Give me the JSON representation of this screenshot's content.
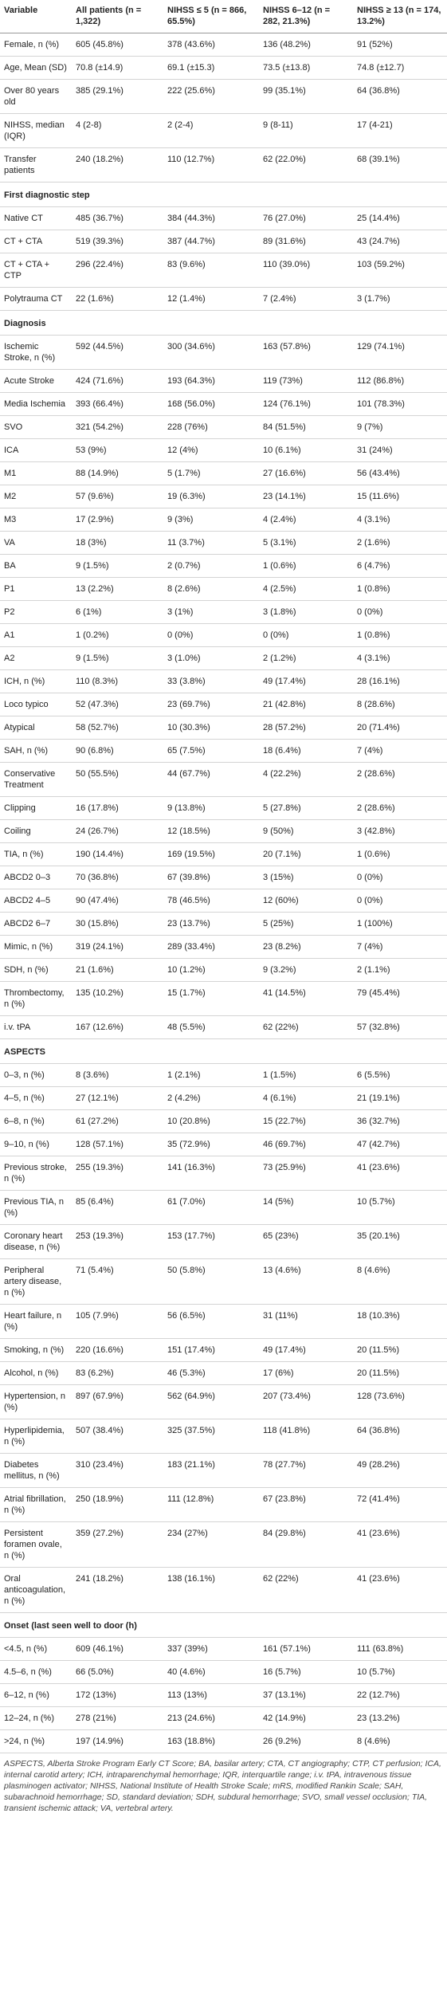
{
  "table": {
    "header": [
      "Variable",
      "All patients (n = 1,322)",
      "NIHSS ≤ 5 (n = 866, 65.5%)",
      "NIHSS 6–12 (n = 282, 21.3%)",
      "NIHSS ≥ 13 (n = 174, 13.2%)"
    ],
    "rows": [
      [
        "Female, n (%)",
        "605 (45.8%)",
        "378 (43.6%)",
        "136 (48.2%)",
        "91 (52%)"
      ],
      [
        "Age, Mean (SD)",
        "70.8 (±14.9)",
        "69.1 (±15.3)",
        "73.5 (±13.8)",
        "74.8 (±12.7)"
      ],
      [
        "Over 80 years old",
        "385 (29.1%)",
        "222 (25.6%)",
        "99 (35.1%)",
        "64 (36.8%)"
      ],
      [
        "NIHSS, median (IQR)",
        "4 (2-8)",
        "2 (2-4)",
        "9 (8-11)",
        "17 (4-21)"
      ],
      [
        "Transfer patients",
        "240 (18.2%)",
        "110 (12.7%)",
        "62 (22.0%)",
        "68 (39.1%)"
      ],
      [
        "First diagnostic step"
      ],
      [
        "Native CT",
        "485 (36.7%)",
        "384 (44.3%)",
        "76 (27.0%)",
        "25 (14.4%)"
      ],
      [
        "CT + CTA",
        "519 (39.3%)",
        "387 (44.7%)",
        "89 (31.6%)",
        "43 (24.7%)"
      ],
      [
        "CT + CTA + CTP",
        "296 (22.4%)",
        "83 (9.6%)",
        "110 (39.0%)",
        "103 (59.2%)"
      ],
      [
        "Polytrauma CT",
        "22 (1.6%)",
        "12 (1.4%)",
        "7 (2.4%)",
        "3 (1.7%)"
      ],
      [
        "Diagnosis"
      ],
      [
        "Ischemic Stroke, n (%)",
        "592 (44.5%)",
        "300 (34.6%)",
        "163 (57.8%)",
        "129 (74.1%)"
      ],
      [
        "Acute Stroke",
        "424 (71.6%)",
        "193 (64.3%)",
        "119 (73%)",
        "112 (86.8%)"
      ],
      [
        "Media Ischemia",
        "393 (66.4%)",
        "168 (56.0%)",
        "124 (76.1%)",
        "101 (78.3%)"
      ],
      [
        "SVO",
        "321 (54.2%)",
        "228 (76%)",
        "84 (51.5%)",
        "9 (7%)"
      ],
      [
        "ICA",
        "53 (9%)",
        "12 (4%)",
        "10 (6.1%)",
        "31 (24%)"
      ],
      [
        "M1",
        "88 (14.9%)",
        "5 (1.7%)",
        "27 (16.6%)",
        "56 (43.4%)"
      ],
      [
        "M2",
        "57 (9.6%)",
        "19 (6.3%)",
        "23 (14.1%)",
        "15 (11.6%)"
      ],
      [
        "M3",
        "17 (2.9%)",
        "9 (3%)",
        "4 (2.4%)",
        "4 (3.1%)"
      ],
      [
        "VA",
        "18 (3%)",
        "11 (3.7%)",
        "5 (3.1%)",
        "2 (1.6%)"
      ],
      [
        "BA",
        "9 (1.5%)",
        "2 (0.7%)",
        "1 (0.6%)",
        "6 (4.7%)"
      ],
      [
        "P1",
        "13 (2.2%)",
        "8 (2.6%)",
        "4 (2.5%)",
        "1 (0.8%)"
      ],
      [
        "P2",
        "6 (1%)",
        "3 (1%)",
        "3 (1.8%)",
        "0 (0%)"
      ],
      [
        "A1",
        "1 (0.2%)",
        "0 (0%)",
        "0 (0%)",
        "1 (0.8%)"
      ],
      [
        "A2",
        "9 (1.5%)",
        "3 (1.0%)",
        "2 (1.2%)",
        "4 (3.1%)"
      ],
      [
        "ICH, n (%)",
        "110 (8.3%)",
        "33 (3.8%)",
        "49 (17.4%)",
        "28 (16.1%)"
      ],
      [
        "Loco typico",
        "52 (47.3%)",
        "23 (69.7%)",
        "21 (42.8%)",
        "8 (28.6%)"
      ],
      [
        "Atypical",
        "58 (52.7%)",
        "10 (30.3%)",
        "28 (57.2%)",
        "20 (71.4%)"
      ],
      [
        "SAH, n (%)",
        "90 (6.8%)",
        "65 (7.5%)",
        "18 (6.4%)",
        "7 (4%)"
      ],
      [
        "Conservative Treatment",
        "50 (55.5%)",
        "44 (67.7%)",
        "4 (22.2%)",
        "2 (28.6%)"
      ],
      [
        "Clipping",
        "16 (17.8%)",
        "9 (13.8%)",
        "5 (27.8%)",
        "2 (28.6%)"
      ],
      [
        "Coiling",
        "24 (26.7%)",
        "12 (18.5%)",
        "9 (50%)",
        "3 (42.8%)"
      ],
      [
        "TIA, n (%)",
        "190 (14.4%)",
        "169 (19.5%)",
        "20 (7.1%)",
        "1 (0.6%)"
      ],
      [
        "ABCD2 0–3",
        "70 (36.8%)",
        "67 (39.8%)",
        "3 (15%)",
        "0 (0%)"
      ],
      [
        "ABCD2 4–5",
        "90 (47.4%)",
        "78 (46.5%)",
        "12 (60%)",
        "0 (0%)"
      ],
      [
        "ABCD2 6–7",
        "30 (15.8%)",
        "23 (13.7%)",
        "5 (25%)",
        "1 (100%)"
      ],
      [
        "Mimic, n (%)",
        "319 (24.1%)",
        "289 (33.4%)",
        "23 (8.2%)",
        "7 (4%)"
      ],
      [
        "SDH, n (%)",
        "21 (1.6%)",
        "10 (1.2%)",
        "9 (3.2%)",
        "2 (1.1%)"
      ],
      [
        "Thrombectomy, n (%)",
        "135 (10.2%)",
        "15 (1.7%)",
        "41 (14.5%)",
        "79 (45.4%)"
      ],
      [
        "i.v. tPA",
        "167 (12.6%)",
        "48 (5.5%)",
        "62 (22%)",
        "57 (32.8%)"
      ],
      [
        "ASPECTS"
      ],
      [
        "0–3, n (%)",
        "8 (3.6%)",
        "1 (2.1%)",
        "1 (1.5%)",
        "6 (5.5%)"
      ],
      [
        "4–5, n (%)",
        "27 (12.1%)",
        "2 (4.2%)",
        "4 (6.1%)",
        "21 (19.1%)"
      ],
      [
        "6–8, n (%)",
        "61 (27.2%)",
        "10 (20.8%)",
        "15 (22.7%)",
        "36 (32.7%)"
      ],
      [
        "9–10, n (%)",
        "128 (57.1%)",
        "35 (72.9%)",
        "46 (69.7%)",
        "47 (42.7%)"
      ],
      [
        "Previous stroke, n (%)",
        "255 (19.3%)",
        "141 (16.3%)",
        "73 (25.9%)",
        "41 (23.6%)"
      ],
      [
        "Previous TIA, n (%)",
        "85 (6.4%)",
        "61 (7.0%)",
        "14 (5%)",
        "10 (5.7%)"
      ],
      [
        "Coronary heart disease, n (%)",
        "253 (19.3%)",
        "153 (17.7%)",
        "65 (23%)",
        "35 (20.1%)"
      ],
      [
        "Peripheral artery disease, n (%)",
        "71 (5.4%)",
        "50 (5.8%)",
        "13 (4.6%)",
        "8 (4.6%)"
      ],
      [
        "Heart failure, n (%)",
        "105 (7.9%)",
        "56 (6.5%)",
        "31 (11%)",
        "18 (10.3%)"
      ],
      [
        "Smoking, n (%)",
        "220 (16.6%)",
        "151 (17.4%)",
        "49 (17.4%)",
        "20 (11.5%)"
      ],
      [
        "Alcohol, n (%)",
        "83 (6.2%)",
        "46 (5.3%)",
        "17 (6%)",
        "20 (11.5%)"
      ],
      [
        "Hypertension, n (%)",
        "897 (67.9%)",
        "562 (64.9%)",
        "207 (73.4%)",
        "128 (73.6%)"
      ],
      [
        "Hyperlipidemia, n (%)",
        "507 (38.4%)",
        "325 (37.5%)",
        "118 (41.8%)",
        "64 (36.8%)"
      ],
      [
        "Diabetes mellitus, n (%)",
        "310 (23.4%)",
        "183 (21.1%)",
        "78 (27.7%)",
        "49 (28.2%)"
      ],
      [
        "Atrial fibrillation, n (%)",
        "250 (18.9%)",
        "111 (12.8%)",
        "67 (23.8%)",
        "72 (41.4%)"
      ],
      [
        "Persistent foramen ovale, n (%)",
        "359 (27.2%)",
        "234 (27%)",
        "84 (29.8%)",
        "41 (23.6%)"
      ],
      [
        "Oral anticoagulation, n (%)",
        "241 (18.2%)",
        "138 (16.1%)",
        "62 (22%)",
        "41 (23.6%)"
      ],
      [
        "Onset (last seen well to door (h)"
      ],
      [
        "<4.5, n (%)",
        "609 (46.1%)",
        "337 (39%)",
        "161 (57.1%)",
        "111 (63.8%)"
      ],
      [
        "4.5–6, n (%)",
        "66 (5.0%)",
        "40 (4.6%)",
        "16 (5.7%)",
        "10 (5.7%)"
      ],
      [
        "6–12, n (%)",
        "172 (13%)",
        "113 (13%)",
        "37 (13.1%)",
        "22 (12.7%)"
      ],
      [
        "12–24, n (%)",
        "278 (21%)",
        "213 (24.6%)",
        "42 (14.9%)",
        "23 (13.2%)"
      ],
      [
        ">24, n (%)",
        "197 (14.9%)",
        "163 (18.8%)",
        "26 (9.2%)",
        "8 (4.6%)"
      ]
    ]
  },
  "footnote": "ASPECTS, Alberta Stroke Program Early CT Score; BA, basilar artery; CTA, CT angiography; CTP, CT perfusion; ICA, internal carotid artery; ICH, intraparenchymal hemorrhage; IQR, interquartile range; i.v. tPA, intravenous tissue plasminogen activator; NIHSS, National Institute of Health Stroke Scale; mRS, modified Rankin Scale; SAH, subarachnoid hemorrhage; SD, standard deviation; SDH, subdural hemorrhage; SVO, small vessel occlusion; TIA, transient ischemic attack; VA, vertebral artery."
}
